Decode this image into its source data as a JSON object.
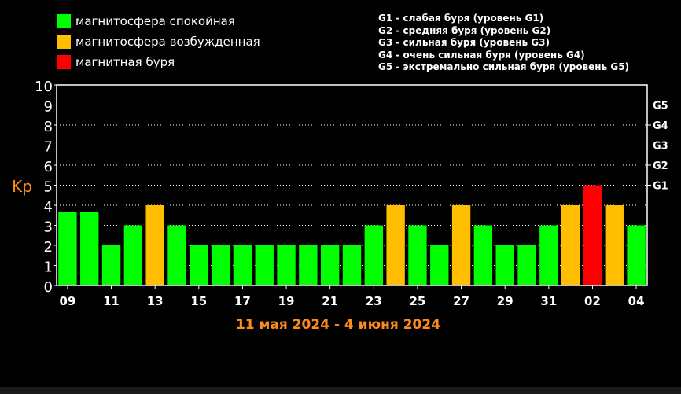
{
  "legend_left": [
    {
      "label": "магнитосфера спокойная",
      "color": "#00ff00"
    },
    {
      "label": "магнитосфера возбужденная",
      "color": "#ffbf00"
    },
    {
      "label": "магнитная буря",
      "color": "#ff0000"
    }
  ],
  "legend_right": [
    "G1 - слабая буря (уровень G1)",
    "G2 - средняя буря (уровень G2)",
    "G3 - сильная буря (уровень G3)",
    "G4 - очень сильная буря (уровень G4)",
    "G5 - экстремально сильная буря (уровень G5)"
  ],
  "colors": {
    "quiet": "#00ff00",
    "active": "#ffbf00",
    "storm": "#ff0000",
    "accent": "#ff8c1a"
  },
  "chart_data": {
    "type": "bar",
    "ylabel": "Kp",
    "ylim": [
      0,
      10
    ],
    "yticks": [
      "0",
      "1",
      "2",
      "3",
      "4",
      "5",
      "6",
      "7",
      "8",
      "9",
      "10"
    ],
    "g_levels": [
      {
        "label": "G1",
        "value": 5
      },
      {
        "label": "G2",
        "value": 6
      },
      {
        "label": "G3",
        "value": 7
      },
      {
        "label": "G4",
        "value": 8
      },
      {
        "label": "G5",
        "value": 9
      }
    ],
    "x_tick_labels": [
      "09",
      "11",
      "13",
      "15",
      "17",
      "19",
      "21",
      "23",
      "25",
      "27",
      "29",
      "31",
      "02",
      "04"
    ],
    "subtitle": "11 мая 2024 - 4 июня 2024",
    "values": [
      3.67,
      3.67,
      2,
      3,
      4,
      3,
      2,
      2,
      2,
      2,
      2,
      2,
      2,
      2,
      3,
      4,
      3,
      2,
      4,
      3,
      2,
      2,
      3,
      4,
      5,
      4,
      3
    ],
    "levels": [
      "quiet",
      "quiet",
      "quiet",
      "quiet",
      "active",
      "quiet",
      "quiet",
      "quiet",
      "quiet",
      "quiet",
      "quiet",
      "quiet",
      "quiet",
      "quiet",
      "quiet",
      "active",
      "quiet",
      "quiet",
      "active",
      "quiet",
      "quiet",
      "quiet",
      "quiet",
      "active",
      "storm",
      "active",
      "quiet"
    ]
  }
}
